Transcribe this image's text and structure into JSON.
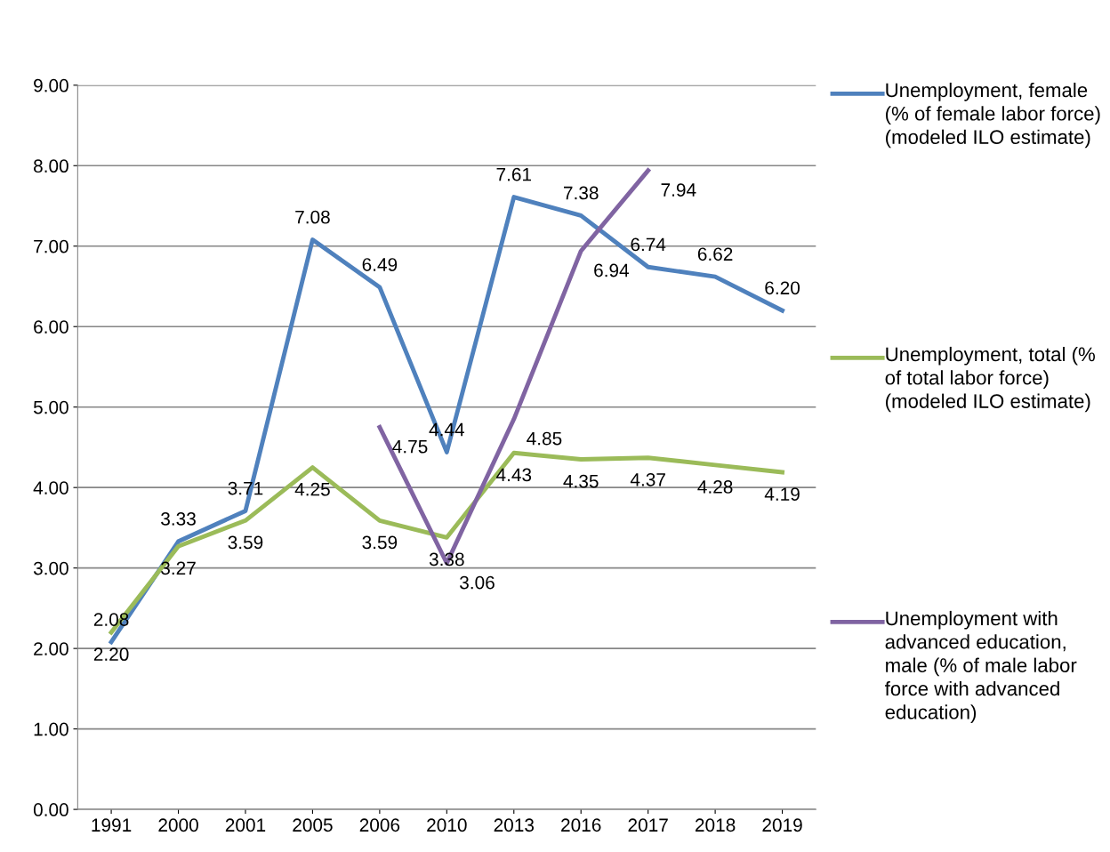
{
  "chart_data": {
    "type": "line",
    "categories": [
      "1991",
      "2000",
      "2001",
      "2005",
      "2006",
      "2010",
      "2013",
      "2016",
      "2017",
      "2018",
      "2019"
    ],
    "series": [
      {
        "name": "Unemployment, female (% of female labor force) (modeled ILO estimate)",
        "color": "#4f81bd",
        "values": [
          2.08,
          3.33,
          3.71,
          7.08,
          6.49,
          4.44,
          7.61,
          7.38,
          6.74,
          6.62,
          6.2
        ],
        "value_labels": [
          "2.08",
          "3.33",
          "3.71",
          "7.08",
          "6.49",
          "4.44",
          "7.61",
          "7.38",
          "6.74",
          "6.62",
          "6.20"
        ]
      },
      {
        "name": "Unemployment, total (% of total labor force) (modeled ILO estimate)",
        "color": "#9bbb59",
        "values": [
          2.2,
          3.27,
          3.59,
          4.25,
          3.59,
          3.38,
          4.43,
          4.35,
          4.37,
          4.28,
          4.19
        ],
        "value_labels": [
          "2.20",
          "3.27",
          "3.59",
          "4.25",
          "3.59",
          "3.38",
          "4.43",
          "4.35",
          "4.37",
          "4.28",
          "4.19"
        ]
      },
      {
        "name": "Unemployment with advanced education, male (% of male labor force with advanced education)",
        "color": "#8064a2",
        "values": [
          null,
          null,
          null,
          null,
          4.75,
          3.06,
          4.85,
          6.94,
          7.94,
          null,
          null
        ],
        "value_labels": [
          null,
          null,
          null,
          null,
          "4.75",
          "3.06",
          "4.85",
          "6.94",
          "7.94",
          null,
          null
        ]
      }
    ],
    "ylim": [
      0,
      9
    ],
    "yticks": [
      {
        "value": 0,
        "label": "0.00"
      },
      {
        "value": 1,
        "label": "1.00"
      },
      {
        "value": 2,
        "label": "2.00"
      },
      {
        "value": 3,
        "label": "3.00"
      },
      {
        "value": 4,
        "label": "4.00"
      },
      {
        "value": 5,
        "label": "5.00"
      },
      {
        "value": 6,
        "label": "6.00"
      },
      {
        "value": 7,
        "label": "7.00"
      },
      {
        "value": 8,
        "label": "8.00"
      },
      {
        "value": 9,
        "label": "9.00"
      }
    ],
    "grid": "y",
    "legend": "right",
    "marker": "none",
    "line_style": "solid"
  }
}
